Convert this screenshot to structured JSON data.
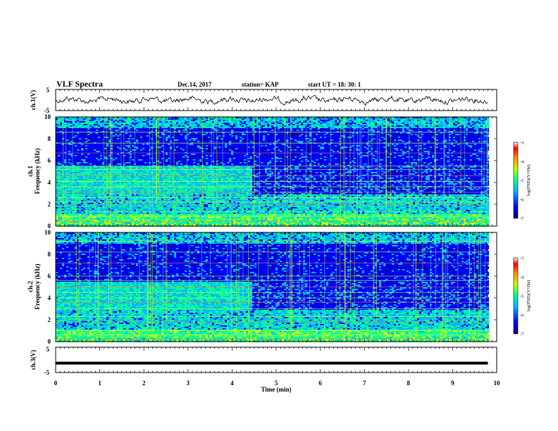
{
  "header": {
    "title": "VLF Spectra",
    "date": "Dec.14, 2017",
    "station": "station= KAP",
    "start": "start  UT =   18: 30: 1"
  },
  "chart_data": [
    {
      "type": "line",
      "panel": "ch1-waveform",
      "ylabel": "ch.1(V)",
      "ylim": [
        -5,
        5
      ],
      "yticks": [
        "5",
        "-5"
      ],
      "xlim": [
        0,
        10
      ]
    },
    {
      "type": "heatmap",
      "panel": "ch1-spectrogram",
      "ylabel": "ch.1",
      "ylabel2": "Frequency (kHz)",
      "ylim": [
        0,
        10
      ],
      "yticks": [
        "0",
        "2",
        "4",
        "6",
        "8",
        "10"
      ],
      "colorbar": {
        "label": "log(PSD)(V²/Hz)",
        "range": [
          -7,
          -3
        ],
        "ticks": [
          "-3",
          "-4",
          "-5",
          "-6",
          "-7"
        ]
      }
    },
    {
      "type": "heatmap",
      "panel": "ch2-spectrogram",
      "ylabel": "ch.2",
      "ylabel2": "Frequency (kHz)",
      "ylim": [
        0,
        10
      ],
      "yticks": [
        "0",
        "2",
        "4",
        "6",
        "8",
        "10"
      ],
      "colorbar": {
        "label": "log(PSD)(V²/Hz)",
        "range": [
          -7,
          -3
        ],
        "ticks": [
          "-3",
          "-4",
          "-5",
          "-6",
          "-7"
        ]
      }
    },
    {
      "type": "line",
      "panel": "ch3-waveform",
      "ylabel": "ch.3(V)",
      "ylim": [
        -5,
        5
      ],
      "yticks": [
        "5",
        "-5"
      ],
      "series": [
        {
          "x": [
            0,
            9.8
          ],
          "y": [
            -1.3,
            -1.3
          ]
        }
      ]
    }
  ],
  "xaxis": {
    "label": "Time (min)",
    "ticks": [
      "0",
      "1",
      "2",
      "3",
      "4",
      "5",
      "6",
      "7",
      "8",
      "9",
      "10"
    ],
    "range": [
      0,
      10
    ],
    "data_end": 9.8
  }
}
